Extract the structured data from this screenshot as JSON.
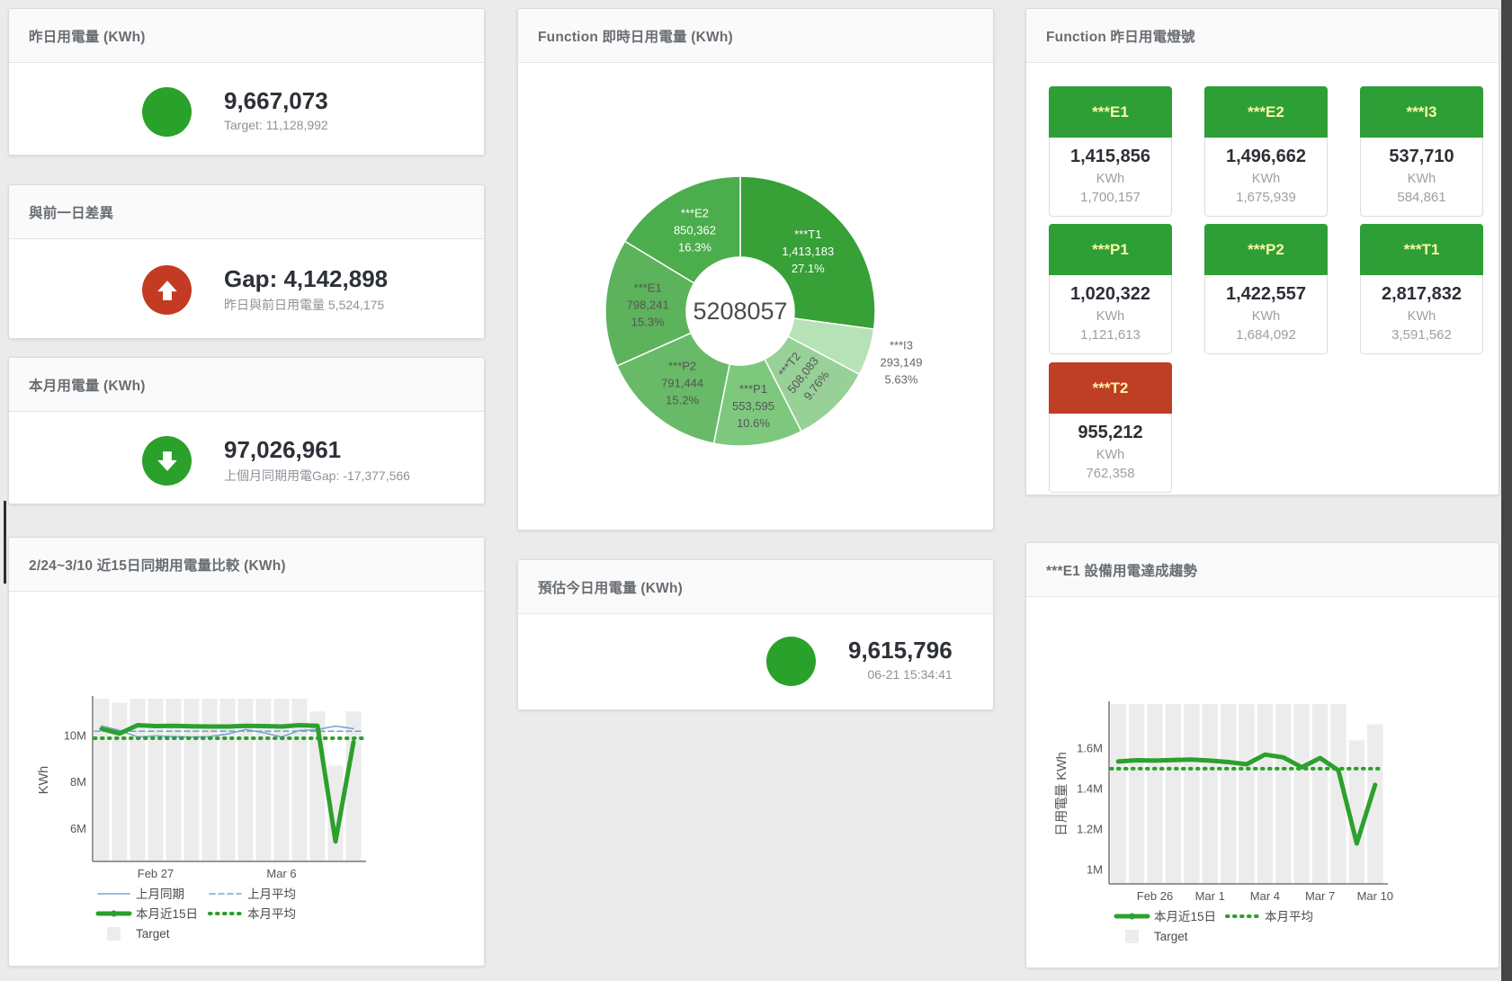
{
  "page": {
    "background": "#ebebeb",
    "scrollbar_color": "#454545",
    "accent_green": "#2aa12a",
    "accent_red": "#c23b22",
    "tile_ok_color": "#2e9e36",
    "tile_alert_color": "#bf3e26"
  },
  "cards": {
    "yesterday": {
      "title": "昨日用電量 (KWh)",
      "value": "9,667,073",
      "subtext": "Target: 11,128,992",
      "status_color": "#2aa12a",
      "icon": "circle"
    },
    "gap": {
      "title": "與前一日差異",
      "value": "Gap: 4,142,898",
      "subtext": "昨日與前日用電量 5,524,175",
      "status_color": "#c23b22",
      "icon": "arrow-up"
    },
    "month": {
      "title": "本月用電量 (KWh)",
      "value": "97,026,961",
      "subtext": "上個月同期用電Gap: -17,377,566",
      "status_color": "#2aa12a",
      "icon": "arrow-down"
    },
    "estimate": {
      "title": "預估今日用電量 (KWh)",
      "value": "9,615,796",
      "subtext": "06-21 15:34:41",
      "status_color": "#2aa12a",
      "icon": "circle"
    },
    "donut": {
      "title": "Function 即時日用電量 (KWh)"
    },
    "lights": {
      "title": "Function 昨日用電燈號",
      "unit_label": "KWh",
      "tiles": [
        {
          "name": "***E1",
          "value": "1,415,856",
          "threshold": "1,700,157",
          "status": "ok"
        },
        {
          "name": "***E2",
          "value": "1,496,662",
          "threshold": "1,675,939",
          "status": "ok"
        },
        {
          "name": "***I3",
          "value": "537,710",
          "threshold": "584,861",
          "status": "ok"
        },
        {
          "name": "***P1",
          "value": "1,020,322",
          "threshold": "1,121,613",
          "status": "ok"
        },
        {
          "name": "***P2",
          "value": "1,422,557",
          "threshold": "1,684,092",
          "status": "ok"
        },
        {
          "name": "***T1",
          "value": "2,817,832",
          "threshold": "3,591,562",
          "status": "ok"
        },
        {
          "name": "***T2",
          "value": "955,212",
          "threshold": "762,358",
          "status": "alert"
        }
      ]
    },
    "compare": {
      "title": "2/24~3/10 近15日同期用電量比較 (KWh)"
    },
    "trend": {
      "title": "***E1 設備用電達成趨勢"
    }
  },
  "chart_data": [
    {
      "id": "donut",
      "type": "pie",
      "title": "Function 即時日用電量 (KWh)",
      "center_label": "5208057",
      "center_label_color": "#4c4c4c",
      "segments": [
        {
          "name": "***T1",
          "value": 1413183,
          "display": "1,413,183",
          "pct": "27.1%",
          "color": "#37a037",
          "label": {
            "pos": "inside",
            "color": "#ffffff",
            "r": 100
          }
        },
        {
          "name": "***I3",
          "value": 293149,
          "display": "293,149",
          "pct": "5.63%",
          "color": "#b7e2b7",
          "label": {
            "pos": "outside",
            "color": "#666666",
            "r": 188
          }
        },
        {
          "name": "***T2",
          "value": 508083,
          "display": "508,083",
          "pct": "9.76%",
          "color": "#97d197",
          "label": {
            "pos": "inside",
            "color": "#555555",
            "r": 100,
            "rotate": -52
          }
        },
        {
          "name": "***P1",
          "value": 553595,
          "display": "553,595",
          "pct": "10.6%",
          "color": "#7ec87e",
          "label": {
            "pos": "inside",
            "color": "#555555",
            "r": 107
          }
        },
        {
          "name": "***P2",
          "value": 791444,
          "display": "791,444",
          "pct": "15.2%",
          "color": "#68ba68",
          "label": {
            "pos": "inside",
            "color": "#555555",
            "r": 103
          }
        },
        {
          "name": "***E1",
          "value": 798241,
          "display": "798,241",
          "pct": "15.3%",
          "color": "#5cb35c",
          "label": {
            "pos": "inside",
            "color": "#555555",
            "r": 103
          }
        },
        {
          "name": "***E2",
          "value": 850362,
          "display": "850,362",
          "pct": "16.3%",
          "color": "#4cad4c",
          "label": {
            "pos": "inside",
            "color": "#ffffff",
            "r": 103
          }
        }
      ]
    },
    {
      "id": "compare",
      "type": "line+bar",
      "title": "2/24~3/10 近15日同期用電量比較 (KWh)",
      "ylabel": "KWh",
      "unit": "M KWh",
      "dates": [
        "2/24",
        "2/25",
        "2/26",
        "2/27",
        "2/28",
        "3/1",
        "3/2",
        "3/3",
        "3/4",
        "3/5",
        "3/6",
        "3/7",
        "3/8",
        "3/9",
        "3/10"
      ],
      "ylim": [
        4.6,
        11.6
      ],
      "yticks": [
        {
          "v": 6,
          "label": "6M"
        },
        {
          "v": 8,
          "label": "8M"
        },
        {
          "v": 10,
          "label": "10M"
        }
      ],
      "xticks": [
        {
          "i": 3,
          "label": "Feb 27"
        },
        {
          "i": 10,
          "label": "Mar 6"
        }
      ],
      "bars": {
        "name": "Target",
        "color": "#ececec",
        "values": [
          11.6,
          11.42,
          11.6,
          11.6,
          11.6,
          11.6,
          11.6,
          11.6,
          11.6,
          11.6,
          11.6,
          11.6,
          11.05,
          8.72,
          11.05
        ]
      },
      "series": [
        {
          "name": "上月同期",
          "style": "solid",
          "width": 1.6,
          "color": "#74a5d2",
          "values": [
            10.43,
            10.23,
            9.95,
            10.0,
            9.97,
            9.95,
            9.97,
            10.08,
            10.27,
            10.14,
            9.95,
            10.23,
            10.27,
            10.42,
            10.31
          ]
        },
        {
          "name": "上月平均",
          "style": "dashed",
          "width": 1.6,
          "color": "#74a5d2",
          "const": 10.2
        },
        {
          "name": "本月近15日",
          "style": "solid",
          "width": 5,
          "color": "#2ca02c",
          "values": [
            10.3,
            10.1,
            10.46,
            10.42,
            10.43,
            10.41,
            10.4,
            10.4,
            10.43,
            10.42,
            10.4,
            10.46,
            10.43,
            5.46,
            9.73
          ]
        },
        {
          "name": "本月平均",
          "style": "dotted",
          "width": 4,
          "color": "#2ca02c",
          "const": 9.9
        }
      ],
      "legend_rows": [
        [
          "上月同期",
          "上月平均"
        ],
        [
          "本月近15日",
          "本月平均"
        ],
        [
          "Target"
        ]
      ]
    },
    {
      "id": "trend",
      "type": "line+bar",
      "title": "***E1 設備用電達成趨勢",
      "ylabel": "日用電量 KWh",
      "unit": "M KWh",
      "dates": [
        "2/24",
        "2/25",
        "2/26",
        "2/27",
        "2/28",
        "3/1",
        "3/2",
        "3/3",
        "3/4",
        "3/5",
        "3/6",
        "3/7",
        "3/8",
        "3/9",
        "3/10"
      ],
      "ylim": [
        0.93,
        1.82
      ],
      "yticks": [
        {
          "v": 1,
          "label": "1M"
        },
        {
          "v": 1.2,
          "label": "1.2M"
        },
        {
          "v": 1.4,
          "label": "1.4M"
        },
        {
          "v": 1.6,
          "label": "1.6M"
        }
      ],
      "xticks": [
        {
          "i": 2,
          "label": "Feb 26"
        },
        {
          "i": 5,
          "label": "Mar 1"
        },
        {
          "i": 8,
          "label": "Mar 4"
        },
        {
          "i": 11,
          "label": "Mar 7"
        },
        {
          "i": 14,
          "label": "Mar 10"
        }
      ],
      "bars": {
        "name": "Target",
        "color": "#ececec",
        "values": [
          1.82,
          1.82,
          1.82,
          1.82,
          1.82,
          1.82,
          1.82,
          1.82,
          1.82,
          1.82,
          1.82,
          1.82,
          1.82,
          1.64,
          1.72
        ]
      },
      "series": [
        {
          "name": "本月近15日",
          "style": "solid",
          "width": 5,
          "color": "#2ca02c",
          "values": [
            1.536,
            1.542,
            1.54,
            1.543,
            1.545,
            1.54,
            1.533,
            1.522,
            1.57,
            1.556,
            1.507,
            1.553,
            1.492,
            1.13,
            1.42
          ]
        },
        {
          "name": "本月平均",
          "style": "dotted",
          "width": 4,
          "color": "#2ca02c",
          "const": 1.5
        }
      ],
      "legend_rows": [
        [
          "本月近15日",
          "本月平均"
        ],
        [
          "Target"
        ]
      ]
    }
  ]
}
